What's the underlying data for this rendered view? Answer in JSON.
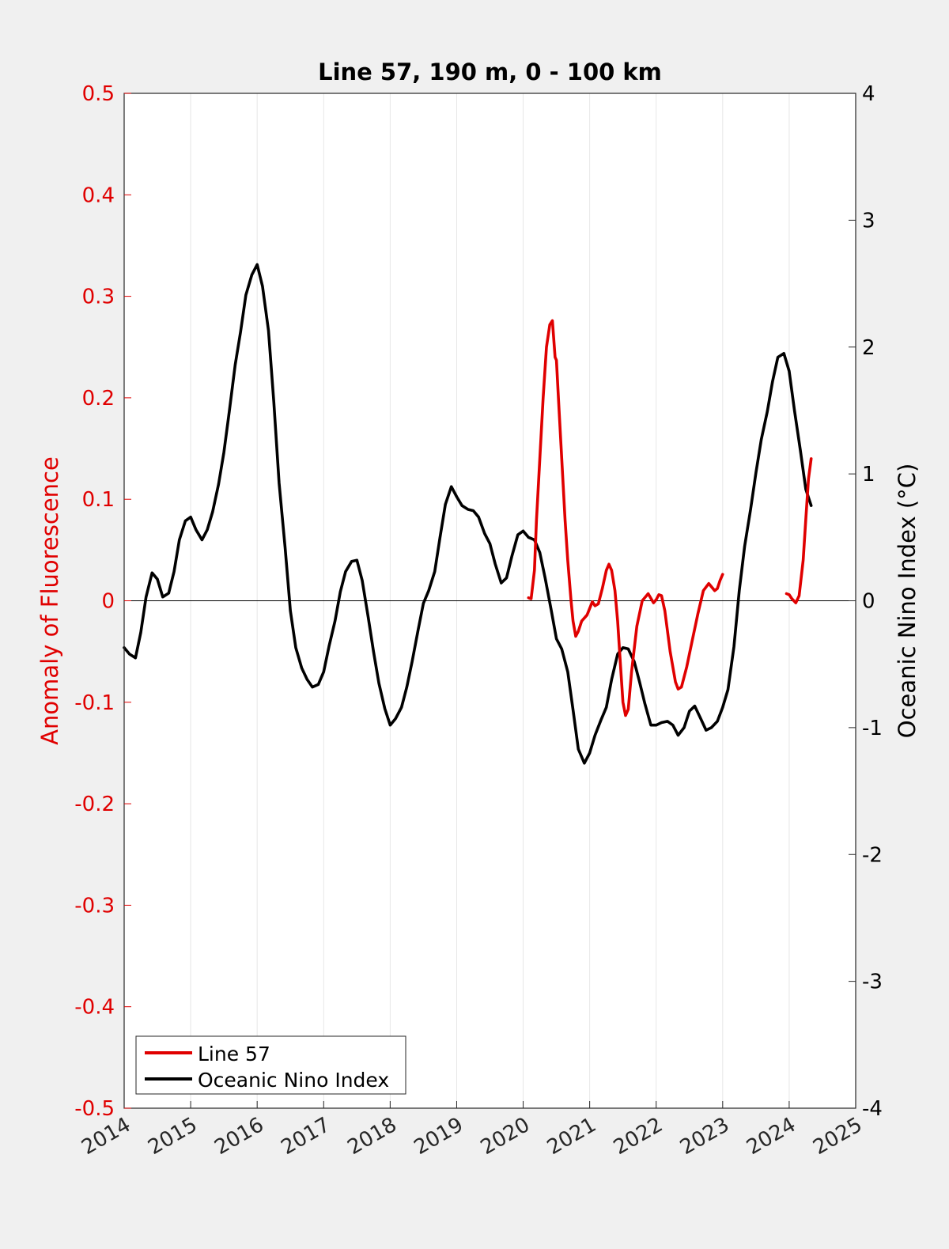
{
  "chart_data": {
    "type": "line",
    "title": "Line 57, 190 m, 0 - 100 km",
    "xlabel": "",
    "ylabel_left": "Anomaly of Fluorescence",
    "ylabel_right": "Oceanic Nino Index (°C)",
    "xlim": [
      2014,
      2025
    ],
    "ylim_left": [
      -0.5,
      0.5
    ],
    "ylim_right": [
      -4,
      4
    ],
    "x_ticks": [
      "2014",
      "2015",
      "2016",
      "2017",
      "2018",
      "2019",
      "2020",
      "2021",
      "2022",
      "2023",
      "2024",
      "2025"
    ],
    "y_ticks_left": [
      "0.5",
      "0.4",
      "0.3",
      "0.2",
      "0.1",
      "0",
      "-0.1",
      "-0.2",
      "-0.3",
      "-0.4",
      "-0.5"
    ],
    "y_ticks_right": [
      "4",
      "3",
      "2",
      "1",
      "0",
      "-1",
      "-2",
      "-3",
      "-4"
    ],
    "grid": "vertical",
    "zero_line": true,
    "legend_position": "bottom-left",
    "colors": {
      "line57": "#e00000",
      "oni": "#000000",
      "left_axis": "#e00000",
      "right_axis": "#000000"
    },
    "series": [
      {
        "name": "Line 57",
        "axis": "left",
        "segments": [
          [
            [
              2020.08,
              0.003
            ],
            [
              2020.12,
              0.002
            ],
            [
              2020.17,
              0.03
            ],
            [
              2020.2,
              0.08
            ],
            [
              2020.25,
              0.14
            ],
            [
              2020.3,
              0.2
            ],
            [
              2020.35,
              0.25
            ],
            [
              2020.4,
              0.272
            ],
            [
              2020.44,
              0.276
            ],
            [
              2020.48,
              0.24
            ],
            [
              2020.5,
              0.237
            ],
            [
              2020.53,
              0.2
            ],
            [
              2020.58,
              0.14
            ],
            [
              2020.63,
              0.08
            ],
            [
              2020.67,
              0.04
            ],
            [
              2020.72,
              0.0
            ],
            [
              2020.75,
              -0.02
            ],
            [
              2020.79,
              -0.035
            ],
            [
              2020.83,
              -0.03
            ],
            [
              2020.88,
              -0.02
            ],
            [
              2020.96,
              -0.014
            ],
            [
              2021.04,
              -0.001
            ],
            [
              2021.08,
              -0.005
            ],
            [
              2021.13,
              -0.003
            ],
            [
              2021.19,
              0.012
            ],
            [
              2021.25,
              0.03
            ],
            [
              2021.29,
              0.036
            ],
            [
              2021.33,
              0.03
            ],
            [
              2021.38,
              0.01
            ],
            [
              2021.42,
              -0.02
            ],
            [
              2021.46,
              -0.06
            ],
            [
              2021.5,
              -0.1
            ],
            [
              2021.54,
              -0.113
            ],
            [
              2021.58,
              -0.107
            ],
            [
              2021.63,
              -0.07
            ],
            [
              2021.71,
              -0.025
            ],
            [
              2021.79,
              0.0
            ],
            [
              2021.88,
              0.007
            ],
            [
              2021.96,
              -0.002
            ],
            [
              2022.0,
              0.001
            ],
            [
              2022.04,
              0.006
            ],
            [
              2022.08,
              0.005
            ],
            [
              2022.13,
              -0.01
            ],
            [
              2022.21,
              -0.05
            ],
            [
              2022.29,
              -0.08
            ],
            [
              2022.33,
              -0.087
            ],
            [
              2022.38,
              -0.085
            ],
            [
              2022.46,
              -0.065
            ],
            [
              2022.54,
              -0.04
            ],
            [
              2022.63,
              -0.012
            ],
            [
              2022.71,
              0.01
            ],
            [
              2022.79,
              0.017
            ],
            [
              2022.88,
              0.01
            ],
            [
              2022.92,
              0.012
            ],
            [
              2022.96,
              0.02
            ],
            [
              2023.0,
              0.026
            ]
          ],
          [
            [
              2023.96,
              0.007
            ],
            [
              2024.0,
              0.006
            ],
            [
              2024.04,
              0.002
            ],
            [
              2024.1,
              -0.002
            ],
            [
              2024.15,
              0.005
            ],
            [
              2024.21,
              0.04
            ],
            [
              2024.25,
              0.08
            ],
            [
              2024.29,
              0.12
            ],
            [
              2024.33,
              0.14
            ]
          ]
        ]
      },
      {
        "name": "Oceanic Nino Index",
        "axis": "right",
        "x": [
          2014.0,
          2014.08,
          2014.17,
          2014.25,
          2014.33,
          2014.42,
          2014.5,
          2014.58,
          2014.67,
          2014.75,
          2014.83,
          2014.92,
          2015.0,
          2015.08,
          2015.17,
          2015.25,
          2015.33,
          2015.42,
          2015.5,
          2015.58,
          2015.67,
          2015.75,
          2015.83,
          2015.92,
          2016.0,
          2016.08,
          2016.17,
          2016.25,
          2016.33,
          2016.42,
          2016.5,
          2016.58,
          2016.67,
          2016.75,
          2016.83,
          2016.92,
          2017.0,
          2017.08,
          2017.17,
          2017.25,
          2017.33,
          2017.42,
          2017.5,
          2017.58,
          2017.67,
          2017.75,
          2017.83,
          2017.92,
          2018.0,
          2018.08,
          2018.17,
          2018.25,
          2018.33,
          2018.42,
          2018.5,
          2018.58,
          2018.67,
          2018.75,
          2018.83,
          2018.92,
          2019.0,
          2019.08,
          2019.17,
          2019.25,
          2019.33,
          2019.42,
          2019.5,
          2019.58,
          2019.67,
          2019.75,
          2019.83,
          2019.92,
          2020.0,
          2020.08,
          2020.17,
          2020.25,
          2020.33,
          2020.42,
          2020.5,
          2020.58,
          2020.67,
          2020.75,
          2020.83,
          2020.92,
          2021.0,
          2021.08,
          2021.17,
          2021.25,
          2021.33,
          2021.42,
          2021.5,
          2021.58,
          2021.67,
          2021.75,
          2021.83,
          2021.92,
          2022.0,
          2022.08,
          2022.17,
          2022.25,
          2022.33,
          2022.42,
          2022.5,
          2022.58,
          2022.67,
          2022.75,
          2022.83,
          2022.92,
          2023.0,
          2023.08,
          2023.17,
          2023.25,
          2023.33,
          2023.42,
          2023.5,
          2023.58,
          2023.67,
          2023.75,
          2023.83,
          2023.92,
          2024.0,
          2024.08,
          2024.17,
          2024.25,
          2024.33
        ],
        "values": [
          -0.37,
          -0.42,
          -0.45,
          -0.25,
          0.03,
          0.22,
          0.17,
          0.03,
          0.06,
          0.23,
          0.48,
          0.63,
          0.66,
          0.56,
          0.48,
          0.56,
          0.7,
          0.92,
          1.17,
          1.49,
          1.86,
          2.12,
          2.41,
          2.57,
          2.65,
          2.48,
          2.13,
          1.57,
          0.93,
          0.42,
          -0.08,
          -0.37,
          -0.53,
          -0.62,
          -0.68,
          -0.66,
          -0.56,
          -0.36,
          -0.16,
          0.07,
          0.23,
          0.31,
          0.32,
          0.16,
          -0.13,
          -0.4,
          -0.65,
          -0.85,
          -0.98,
          -0.93,
          -0.84,
          -0.68,
          -0.48,
          -0.23,
          -0.02,
          0.08,
          0.23,
          0.5,
          0.76,
          0.9,
          0.82,
          0.75,
          0.72,
          0.71,
          0.66,
          0.53,
          0.45,
          0.29,
          0.14,
          0.18,
          0.35,
          0.52,
          0.55,
          0.5,
          0.48,
          0.38,
          0.18,
          -0.07,
          -0.3,
          -0.38,
          -0.56,
          -0.86,
          -1.17,
          -1.28,
          -1.2,
          -1.06,
          -0.94,
          -0.84,
          -0.62,
          -0.42,
          -0.37,
          -0.38,
          -0.48,
          -0.64,
          -0.81,
          -0.98,
          -0.98,
          -0.96,
          -0.95,
          -0.98,
          -1.06,
          -1.0,
          -0.87,
          -0.83,
          -0.93,
          -1.02,
          -1.0,
          -0.95,
          -0.84,
          -0.7,
          -0.36,
          0.08,
          0.43,
          0.72,
          1.01,
          1.27,
          1.49,
          1.73,
          1.92,
          1.95,
          1.81,
          1.5,
          1.18,
          0.88,
          0.75
        ]
      }
    ]
  }
}
